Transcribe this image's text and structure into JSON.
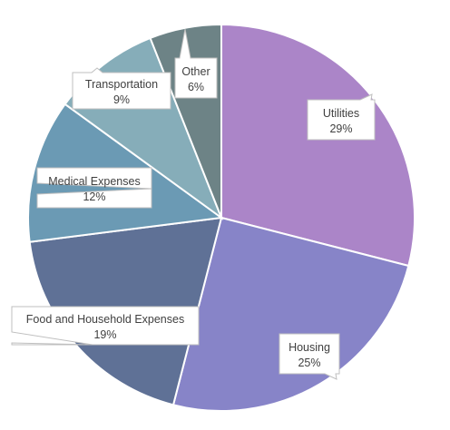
{
  "chart_data": {
    "type": "pie",
    "title": "",
    "slices": [
      {
        "label": "Utilities",
        "value": 29,
        "display": "29%",
        "color": "#ab85c8"
      },
      {
        "label": "Housing",
        "value": 25,
        "display": "25%",
        "color": "#8784c8"
      },
      {
        "label": "Food and Household Expenses",
        "value": 19,
        "display": "19%",
        "color": "#5f7196"
      },
      {
        "label": "Medical Expenses",
        "value": 12,
        "display": "12%",
        "color": "#6b9ab4"
      },
      {
        "label": "Transportation",
        "value": 9,
        "display": "9%",
        "color": "#86adb9"
      },
      {
        "label": "Other",
        "value": 6,
        "display": "6%",
        "color": "#6d8386"
      }
    ],
    "legend": "none",
    "data_labels": "callouts"
  }
}
